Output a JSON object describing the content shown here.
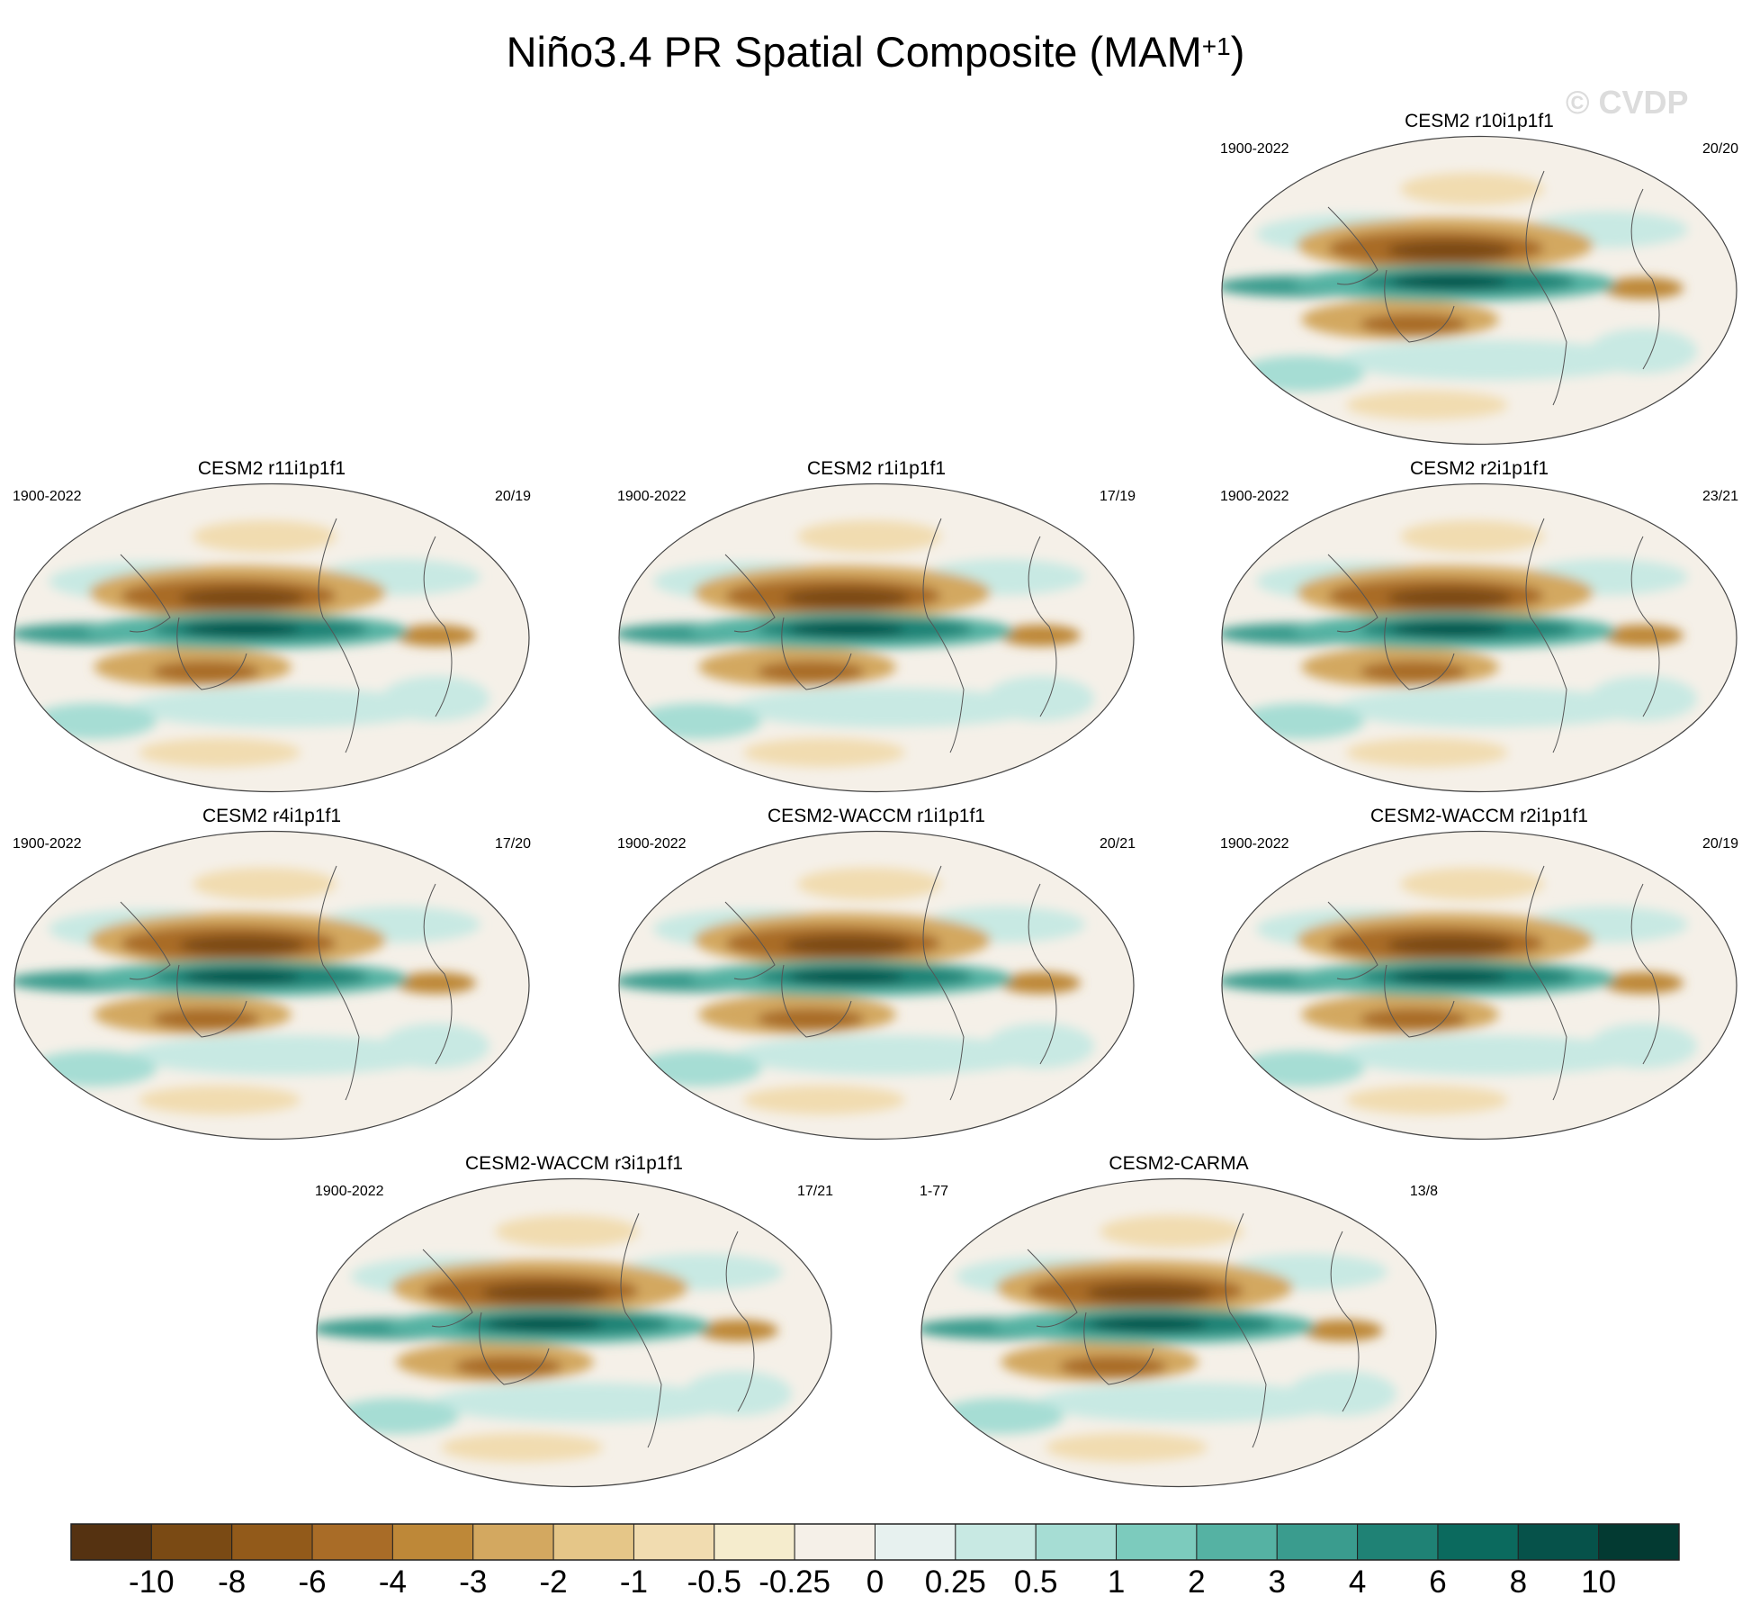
{
  "figure": {
    "title_main": "Niño3.4 PR Spatial Composite (MAM",
    "title_sup": "+1",
    "title_close": ")",
    "watermark": "© CVDP"
  },
  "chart_data": {
    "type": "heatmap",
    "variable": "PR",
    "season": "MAM+1",
    "projection": "global ellipse (Robinson-like)",
    "panels": [
      {
        "title": "CESM2 r10i1p1f1",
        "years": "1900-2022",
        "counts": "20/20"
      },
      {
        "title": "CESM2 r11i1p1f1",
        "years": "1900-2022",
        "counts": "20/19"
      },
      {
        "title": "CESM2 r1i1p1f1",
        "years": "1900-2022",
        "counts": "17/19"
      },
      {
        "title": "CESM2 r2i1p1f1",
        "years": "1900-2022",
        "counts": "23/21"
      },
      {
        "title": "CESM2 r4i1p1f1",
        "years": "1900-2022",
        "counts": "17/20"
      },
      {
        "title": "CESM2-WACCM r1i1p1f1",
        "years": "1900-2022",
        "counts": "20/21"
      },
      {
        "title": "CESM2-WACCM r2i1p1f1",
        "years": "1900-2022",
        "counts": "20/19"
      },
      {
        "title": "CESM2-WACCM r3i1p1f1",
        "years": "1900-2022",
        "counts": "17/21"
      },
      {
        "title": "CESM2-CARMA",
        "years": "1-77",
        "counts": "13/8"
      }
    ],
    "colorbar": {
      "labels": [
        "-10",
        "-8",
        "-6",
        "-4",
        "-3",
        "-2",
        "-1",
        "-0.5",
        "-0.25",
        "0",
        "0.25",
        "0.5",
        "1",
        "2",
        "3",
        "4",
        "6",
        "8",
        "10"
      ],
      "colors": [
        "#553211",
        "#7a4a14",
        "#925a1a",
        "#a96c27",
        "#be8838",
        "#d3a860",
        "#e5c688",
        "#f1dcb0",
        "#f5eccd",
        "#f5f0e8",
        "#e7f1ef",
        "#c8e9e3",
        "#a6ddd4",
        "#7ccbbd",
        "#55b2a3",
        "#3a9c8e",
        "#1f8275",
        "#0b6a5e",
        "#06524a",
        "#033a32"
      ]
    }
  }
}
